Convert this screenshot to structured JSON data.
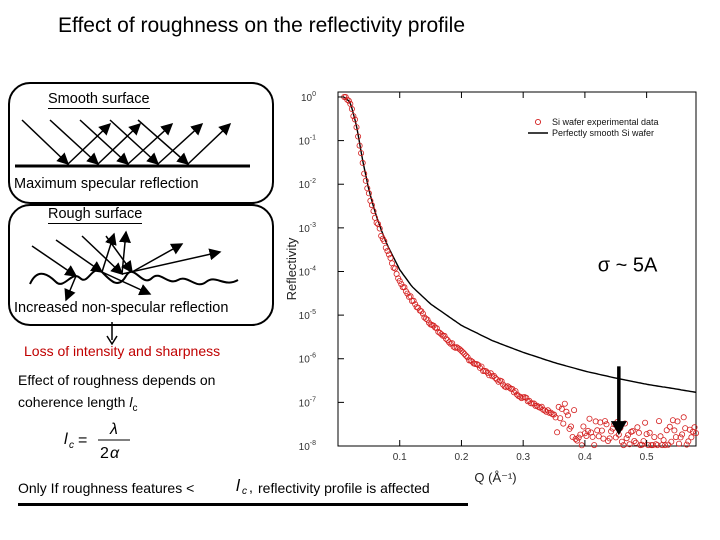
{
  "slide": {
    "title": "Effect of roughness on the reflectivity profile",
    "smooth_label": "Smooth surface",
    "smooth_caption": "Maximum specular reflection",
    "rough_label": "Rough surface",
    "rough_caption": "Increased non-specular reflection",
    "loss_note": "Loss of intensity and sharpness",
    "coherence_line1": "Effect of roughness depends on",
    "coherence_line2": "coherence length ",
    "coherence_symbol": "l",
    "coherence_sub": "c",
    "formula": "lc = λ / 2α",
    "only_text": "Only If roughness features < ",
    "only_symbol": "lc,",
    "only_tail": " reflectivity profile is affected",
    "sigma_annotation": "σ ~ 5A",
    "colors": {
      "loss_note": "#c00000",
      "data_markers": "#d42020",
      "fit_line": "#000000"
    }
  },
  "chart_data": {
    "type": "scatter",
    "title": "",
    "xlabel": "Q (Å⁻¹)",
    "ylabel": "Reflectivity",
    "xlim": [
      0.0,
      0.58
    ],
    "ylim": [
      1e-08,
      1.3
    ],
    "yscale": "log",
    "x_ticks": [
      0.1,
      0.2,
      0.3,
      0.4,
      0.5
    ],
    "x_tick_labels": [
      "0.1",
      "0.2",
      "0.3",
      "0.4",
      "0.5"
    ],
    "y_tick_labels": [
      {
        "base": "10",
        "exp": "0"
      },
      {
        "base": "10",
        "exp": "-1"
      },
      {
        "base": "10",
        "exp": "-2"
      },
      {
        "base": "10",
        "exp": "-3"
      },
      {
        "base": "10",
        "exp": "-4"
      },
      {
        "base": "10",
        "exp": "-5"
      },
      {
        "base": "10",
        "exp": "-6"
      },
      {
        "base": "10",
        "exp": "-7"
      },
      {
        "base": "10",
        "exp": "-8"
      }
    ],
    "legend_position": "top-right",
    "series": [
      {
        "name": "Si wafer experimental data",
        "style": "markers",
        "x": [
          0.01,
          0.012,
          0.014,
          0.016,
          0.018,
          0.02,
          0.023,
          0.026,
          0.03,
          0.035,
          0.04,
          0.045,
          0.05,
          0.06,
          0.07,
          0.08,
          0.09,
          0.1,
          0.12,
          0.14,
          0.16,
          0.18,
          0.2,
          0.22,
          0.25,
          0.28,
          0.3,
          0.33,
          0.35,
          0.38,
          0.4,
          0.42,
          0.44,
          0.46,
          0.48,
          0.5,
          0.52,
          0.54,
          0.56,
          0.58
        ],
        "y": [
          1.0,
          1.0,
          0.95,
          0.9,
          0.85,
          0.7,
          0.5,
          0.35,
          0.2,
          0.08,
          0.03,
          0.012,
          0.006,
          0.0018,
          0.0007,
          0.0003,
          0.00013,
          6e-05,
          2.2e-05,
          9.5e-06,
          4.6e-06,
          2.5e-06,
          1.4e-06,
          8.2e-07,
          4e-07,
          2e-07,
          1.3e-07,
          7.5e-08,
          5.5e-08,
          3.5e-08,
          2.2e-08,
          1.7e-08,
          1.5e-08,
          1.4e-08,
          1.3e-08,
          1.4e-08,
          1.6e-08,
          1.8e-08,
          2.2e-08,
          2.7e-08
        ]
      },
      {
        "name": "Perfectly smooth Si wafer",
        "style": "line",
        "x": [
          0.01,
          0.02,
          0.03,
          0.04,
          0.05,
          0.06,
          0.07,
          0.08,
          0.1,
          0.12,
          0.15,
          0.2,
          0.25,
          0.3,
          0.35,
          0.4,
          0.45,
          0.5,
          0.55,
          0.58
        ],
        "y": [
          1.0,
          0.75,
          0.22,
          0.035,
          0.0075,
          0.0023,
          0.0009,
          0.0004,
          0.00011,
          4.5e-05,
          1.8e-05,
          5.8e-06,
          2.6e-06,
          1.4e-06,
          8.2e-07,
          5.2e-07,
          3.6e-07,
          2.6e-07,
          2e-07,
          1.7e-07
        ]
      }
    ],
    "annotations": [
      {
        "text": "σ ~ 5A",
        "x": 0.45,
        "y": 1.2e-06
      }
    ]
  }
}
